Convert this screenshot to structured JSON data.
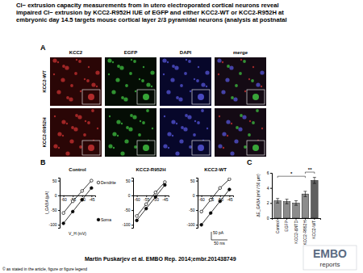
{
  "title_lines": [
    "Cl− extrusion capacity measurements from in utero electroporated cortical neurons reveal",
    "impaired Cl− extrusion by KCC2‐R952H IUE of EGFP and either KCC2‐WT or KCC2‐R952H at",
    "embryonic day 14.5 targets mouse cortical layer 2/3 pyramidal neurons (analysis at postnatal"
  ],
  "panel_a": {
    "label": "A",
    "columns": [
      "KCC2",
      "EGFP",
      "DAPI",
      "merge"
    ],
    "rows": [
      "KCC2-WT",
      "KCC2-R952H"
    ]
  },
  "panel_b": {
    "label": "B",
    "scale_bar": [
      "50 pA",
      "50 ms"
    ]
  },
  "panel_c": {
    "label": "C"
  },
  "chart_data": [
    {
      "type": "line",
      "title": "Control",
      "x_label": "V_H (mV)",
      "y_label": "I_GABA (pA)",
      "x": [
        -60,
        -55,
        -50,
        -45
      ],
      "series": [
        {
          "name": "Dendrite",
          "color": "#000000",
          "marker": "open-circle",
          "values": [
            -60,
            -20,
            15,
            50
          ]
        },
        {
          "name": "Soma",
          "color": "#000000",
          "marker": "filled-circle",
          "values": [
            -95,
            -55,
            -15,
            25
          ]
        }
      ],
      "xlim": [
        -62,
        -43
      ],
      "ylim": [
        -110,
        60
      ],
      "xticks": [
        -60,
        -55,
        -50,
        -45
      ],
      "yticks": [
        -100,
        -50,
        0,
        50
      ],
      "legend": "right"
    },
    {
      "type": "line",
      "title": "KCC2-R952H",
      "x": [
        -60,
        -55,
        -50,
        -45
      ],
      "series": [
        {
          "color": "#000000",
          "marker": "open-circle",
          "values": [
            -70,
            -30,
            10,
            45
          ]
        },
        {
          "color": "#000000",
          "marker": "filled-circle",
          "values": [
            -85,
            -45,
            -5,
            35
          ]
        }
      ],
      "xlim": [
        -62,
        -43
      ],
      "ylim": [
        -110,
        60
      ],
      "xticks": [
        -60,
        -55,
        -50,
        -45
      ],
      "yticks": [
        -100,
        -50,
        0,
        50
      ]
    },
    {
      "type": "line",
      "title": "KCC2-WT",
      "x": [
        -60,
        -55,
        -50,
        -45
      ],
      "series": [
        {
          "color": "#000000",
          "marker": "open-circle",
          "values": [
            -55,
            -15,
            25,
            55
          ]
        },
        {
          "color": "#000000",
          "marker": "filled-circle",
          "values": [
            -100,
            -60,
            -20,
            20
          ]
        }
      ],
      "xlim": [
        -62,
        -43
      ],
      "ylim": [
        -110,
        60
      ],
      "xticks": [
        -60,
        -55,
        -50,
        -45
      ],
      "yticks": [
        -100,
        -50,
        0,
        50
      ]
    },
    {
      "type": "bar",
      "y_label": "ΔE_GABA (mV / 50 µm)",
      "categories": [
        "Control",
        "EGFP",
        "KCC2-ΔNTD",
        "KCC2-R952H",
        "KCC2-WT"
      ],
      "values": [
        2.3,
        2.2,
        2.0,
        3.2,
        5.0
      ],
      "errors": [
        0.3,
        0.3,
        0.3,
        0.35,
        0.4
      ],
      "colors": [
        "#8c8c8c",
        "#8c8c8c",
        "#8c8c8c",
        "#8c8c8c",
        "#5f5f5f"
      ],
      "ylim": [
        0,
        6
      ],
      "yticks": [
        0,
        2,
        4,
        6
      ],
      "annotations": [
        {
          "text": "*",
          "between": [
            "Control",
            "KCC2-R952H"
          ]
        },
        {
          "text": "**",
          "between": [
            "KCC2-R952H",
            "KCC2-WT"
          ]
        }
      ]
    }
  ],
  "footer": {
    "citation": "Martin Puskarjev et al. EMBO Rep. 2014;embr.201438749",
    "copyright": "© as stated in the article, figure or figure legend",
    "logo": [
      "EMBO",
      "reports"
    ]
  }
}
